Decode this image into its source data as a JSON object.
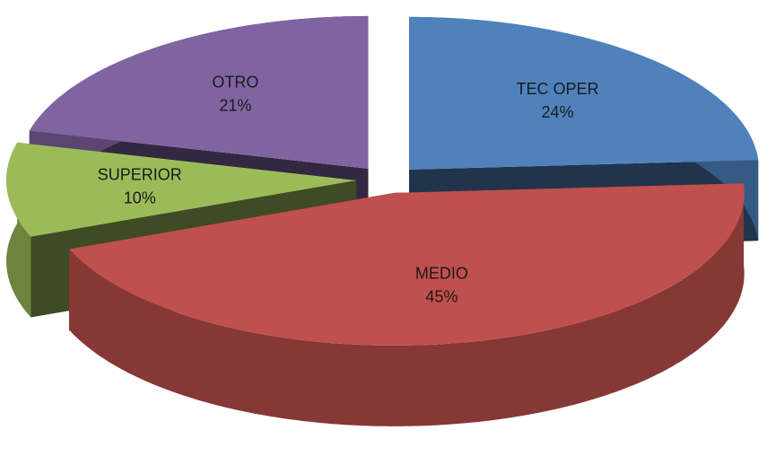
{
  "chart_data": {
    "type": "pie",
    "categories": [
      "TEC OPER",
      "MEDIO",
      "SUPERIOR",
      "OTRO"
    ],
    "values": [
      24,
      45,
      10,
      21
    ],
    "value_labels": [
      "24%",
      "45%",
      "10%",
      "21%"
    ],
    "colors": [
      "#4f81bd",
      "#c0504d",
      "#9bbb59",
      "#8064a2"
    ],
    "exploded": true,
    "3d": true
  }
}
